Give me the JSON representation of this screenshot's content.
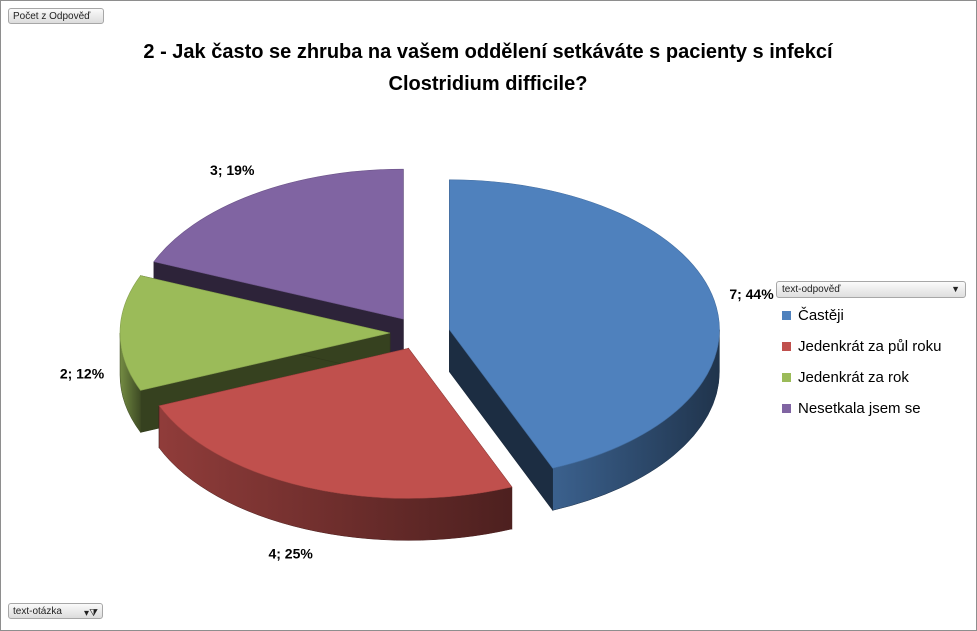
{
  "field_buttons": {
    "values": "Počet z Odpověď",
    "axis": "text-otázka"
  },
  "legend_field": "text-odpověď",
  "chart_data": {
    "type": "pie",
    "title": "2 - Jak často se zhruba na vašem oddělení setkáváte s pacienty s infekcí Clostridium difficile?",
    "categories": [
      "Častěji",
      "Jedenkrát za půl roku",
      "Jedenkrát za rok",
      "Nesetkala jsem se"
    ],
    "values": [
      7,
      4,
      2,
      3
    ],
    "percent_labels": [
      "44%",
      "25%",
      "12%",
      "19%"
    ],
    "data_labels": [
      "7; 44%",
      "4; 25%",
      "2; 12%",
      "3; 19%"
    ],
    "colors": [
      "#4f81bd",
      "#c0504d",
      "#9bbb59",
      "#8064a2"
    ],
    "style": "3d exploded pie",
    "legend_position": "right"
  }
}
